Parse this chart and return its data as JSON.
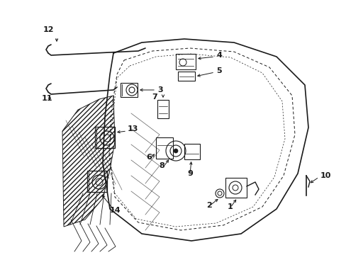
{
  "background_color": "#ffffff",
  "line_color": "#1a1a1a",
  "fig_width": 4.89,
  "fig_height": 3.6,
  "dpi": 100,
  "door_outer": {
    "x": [
      0.38,
      0.33,
      0.3,
      0.29,
      0.3,
      0.33,
      0.38,
      0.46,
      0.56,
      0.65,
      0.72,
      0.76,
      0.77,
      0.75,
      0.7,
      0.62,
      0.53,
      0.44,
      0.38
    ],
    "y": [
      0.95,
      0.9,
      0.83,
      0.73,
      0.6,
      0.48,
      0.38,
      0.3,
      0.25,
      0.24,
      0.27,
      0.33,
      0.43,
      0.55,
      0.67,
      0.77,
      0.84,
      0.9,
      0.95
    ]
  },
  "door_inner1": {
    "x": [
      0.4,
      0.37,
      0.35,
      0.35,
      0.37,
      0.41,
      0.47,
      0.55,
      0.62,
      0.68,
      0.71,
      0.72,
      0.7,
      0.66,
      0.59,
      0.51,
      0.44,
      0.4
    ],
    "y": [
      0.9,
      0.85,
      0.78,
      0.67,
      0.56,
      0.46,
      0.37,
      0.32,
      0.3,
      0.31,
      0.36,
      0.45,
      0.56,
      0.66,
      0.74,
      0.8,
      0.86,
      0.9
    ]
  },
  "door_inner2": {
    "x": [
      0.41,
      0.38,
      0.37,
      0.37,
      0.39,
      0.43,
      0.49,
      0.56,
      0.63,
      0.68,
      0.7,
      0.71,
      0.69,
      0.64,
      0.58,
      0.51,
      0.45,
      0.41
    ],
    "y": [
      0.88,
      0.83,
      0.77,
      0.67,
      0.57,
      0.48,
      0.39,
      0.34,
      0.32,
      0.33,
      0.38,
      0.46,
      0.56,
      0.65,
      0.73,
      0.79,
      0.84,
      0.88
    ]
  }
}
